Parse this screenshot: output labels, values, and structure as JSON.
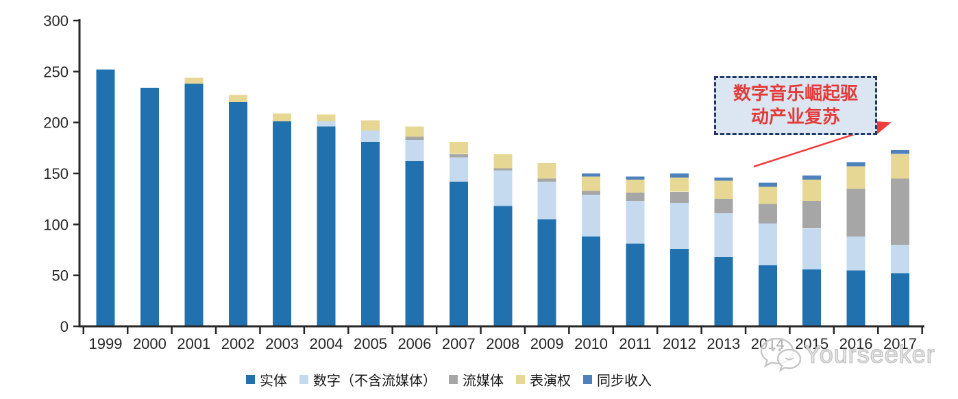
{
  "chart_data": {
    "type": "bar",
    "stacked": true,
    "title": "",
    "xlabel": "",
    "ylabel": "",
    "categories": [
      "1999",
      "2000",
      "2001",
      "2002",
      "2003",
      "2004",
      "2005",
      "2006",
      "2007",
      "2008",
      "2009",
      "2010",
      "2011",
      "2012",
      "2013",
      "2014",
      "2015",
      "2016",
      "2017"
    ],
    "series": [
      {
        "name": "实体",
        "color": "#2171ae",
        "values": [
          252,
          234,
          238,
          220,
          201,
          196,
          181,
          162,
          142,
          118,
          105,
          88,
          81,
          76,
          68,
          60,
          56,
          55,
          52
        ]
      },
      {
        "name": "数字（不含流媒体）",
        "color": "#c5daef",
        "values": [
          0,
          0,
          0,
          0,
          0,
          5,
          11,
          21,
          24,
          35,
          37,
          41,
          42,
          45,
          43,
          41,
          40,
          33,
          28
        ]
      },
      {
        "name": "流媒体",
        "color": "#a6a6a6",
        "values": [
          0,
          0,
          0,
          0,
          0,
          0,
          0,
          3,
          3,
          2,
          3,
          4,
          8,
          11,
          14,
          19,
          27,
          47,
          65
        ]
      },
      {
        "name": "表演权",
        "color": "#e7d795",
        "values": [
          0,
          0,
          6,
          7,
          8,
          7,
          10,
          10,
          12,
          14,
          15,
          14,
          13,
          14,
          18,
          17,
          21,
          22,
          24
        ]
      },
      {
        "name": "同步收入",
        "color": "#4e80bc",
        "values": [
          0,
          0,
          0,
          0,
          0,
          0,
          0,
          0,
          0,
          0,
          0,
          3,
          3,
          4,
          3,
          4,
          4,
          4,
          4
        ]
      }
    ],
    "ylim": [
      0,
      300
    ],
    "yticks": [
      0,
      50,
      100,
      150,
      200,
      250,
      300
    ],
    "grid": false,
    "legend_position": "bottom"
  },
  "annotation": {
    "line1": "数字音乐崛起驱",
    "line2": "动产业复苏",
    "box_fill": "#dbe6f2",
    "box_border": "#1f3864",
    "text_color": "#e23b39",
    "arrow_color": "#f23b3b"
  },
  "watermark": {
    "text": "Yourseeker"
  }
}
